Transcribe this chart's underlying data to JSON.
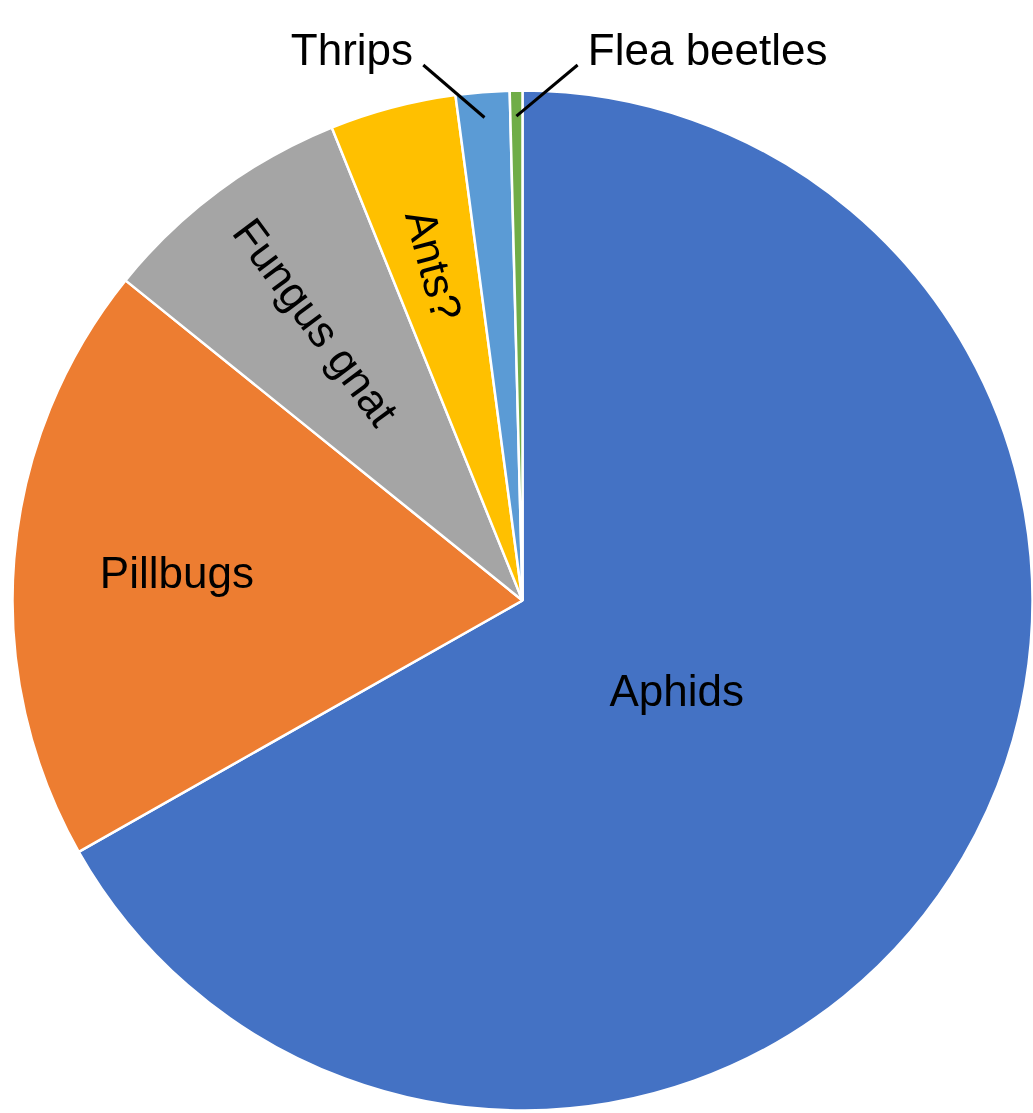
{
  "chart_data": {
    "type": "pie",
    "categories": [
      "Aphids",
      "Pillbugs",
      "Fungus gnat",
      "Ants?",
      "Thrips",
      "Flea beetles"
    ],
    "values": [
      66.8,
      19.0,
      8.1,
      4.0,
      1.7,
      0.4
    ],
    "colors": [
      "#4472c4",
      "#ed7d31",
      "#a5a5a5",
      "#ffc000",
      "#5b9bd5",
      "#70ad47"
    ]
  }
}
